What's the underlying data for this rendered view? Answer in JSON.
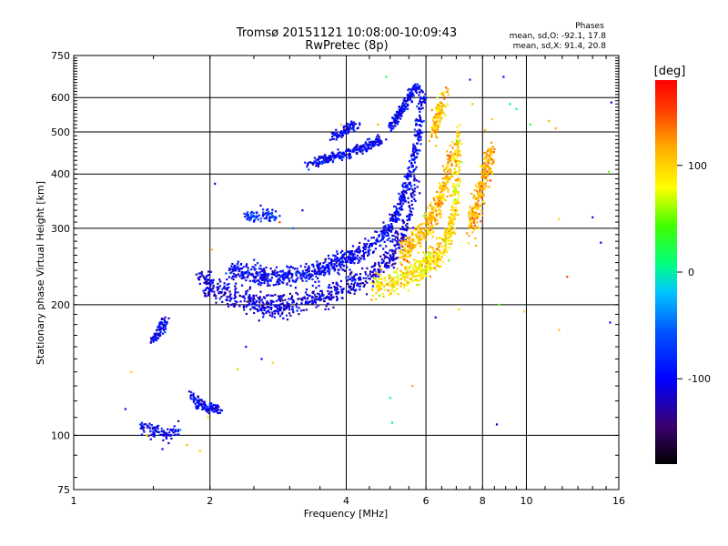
{
  "chart_data": {
    "type": "scatter",
    "title": "Tromsø 20151121 10:08:00-10:09:43",
    "subtitle": "RwPretec (8p)",
    "xlabel": "Frequency [MHz]",
    "ylabel": "Stationary phase Virtual Height [km]",
    "x_scale": "log",
    "y_scale": "log",
    "xlim": [
      1,
      16
    ],
    "ylim": [
      75,
      750
    ],
    "x_ticks": [
      1,
      2,
      4,
      6,
      8,
      10,
      16
    ],
    "x_tick_labels": [
      "1",
      "2",
      "4",
      "6",
      "8",
      "10",
      "16"
    ],
    "y_ticks": [
      75,
      100,
      200,
      300,
      400,
      500,
      600,
      750
    ],
    "y_tick_labels": [
      "75",
      "100",
      "200",
      "300",
      "400",
      "500",
      "600",
      "750"
    ],
    "grid": true,
    "phase_info": {
      "title": "Phases",
      "line_o": "mean, sd,O: -92.1, 17.8",
      "line_x": "mean, sd,X:  91.4, 20.8"
    },
    "colorbar": {
      "label": "[deg]",
      "range": [
        -180,
        180
      ],
      "ticks": [
        100,
        0,
        -100
      ],
      "tick_labels": [
        "100",
        "0",
        "-100"
      ],
      "colormap": "rainbow"
    },
    "series": [
      {
        "traces": [
          {
            "f": [
              1.9,
              2.0,
              2.2,
              2.4,
              2.6,
              2.8,
              3.0,
              3.3,
              3.6,
              4.0,
              4.4,
              4.8,
              5.1,
              5.4,
              5.7
            ],
            "h": [
              230,
              220,
              210,
              205,
              200,
              198,
              200,
              205,
              210,
              220,
              230,
              245,
              265,
              300,
              380
            ],
            "phase": -110,
            "spread": 10
          },
          {
            "f": [
              2.2,
              2.5,
              2.8,
              3.2,
              3.6,
              4.0,
              4.5,
              5.0,
              5.4,
              5.7,
              5.9
            ],
            "h": [
              240,
              235,
              232,
              235,
              245,
              255,
              270,
              300,
              360,
              450,
              620
            ],
            "phase": -100,
            "spread": 8
          },
          {
            "f": [
              3.3,
              3.6,
              4.0,
              4.4,
              4.8
            ],
            "h": [
              420,
              435,
              445,
              465,
              480
            ],
            "phase": -100,
            "spread": 4
          },
          {
            "f": [
              3.7,
              4.0,
              4.2
            ],
            "h": [
              490,
              505,
              520
            ],
            "phase": -100,
            "spread": 4
          },
          {
            "f": [
              5.0,
              5.3,
              5.5,
              5.7
            ],
            "h": [
              510,
              560,
              600,
              640
            ],
            "phase": -95,
            "spread": 3
          },
          {
            "f": [
              1.4,
              1.5,
              1.6,
              1.7
            ],
            "h": [
              105,
              102,
              100,
              104
            ],
            "phase": -105,
            "spread": 6
          },
          {
            "f": [
              1.5,
              1.55,
              1.6
            ],
            "h": [
              165,
              175,
              185
            ],
            "phase": -100,
            "spread": 3
          },
          {
            "f": [
              1.8,
              1.9,
              2.0,
              2.1
            ],
            "h": [
              125,
              118,
              115,
              115
            ],
            "phase": -100,
            "spread": 4
          },
          {
            "f": [
              2.4,
              2.6,
              2.8
            ],
            "h": [
              320,
              325,
              320
            ],
            "phase": -80,
            "spread": 6
          }
        ]
      },
      {
        "traces": [
          {
            "f": [
              4.6,
              5.0,
              5.4,
              5.8,
              6.1,
              6.4,
              6.7,
              6.9,
              7.0,
              7.1
            ],
            "h": [
              220,
              225,
              232,
              240,
              250,
              262,
              285,
              320,
              400,
              500
            ],
            "phase": 95,
            "spread": 10
          },
          {
            "f": [
              5.3,
              5.6,
              6.0,
              6.3,
              6.6,
              6.9
            ],
            "h": [
              260,
              280,
              300,
              330,
              380,
              450
            ],
            "phase": 110,
            "spread": 10
          },
          {
            "f": [
              6.2,
              6.4,
              6.6
            ],
            "h": [
              500,
              550,
              600
            ],
            "phase": 110,
            "spread": 12
          },
          {
            "f": [
              7.5,
              7.8,
              8.1,
              8.4
            ],
            "h": [
              300,
              340,
              400,
              450
            ],
            "phase": 115,
            "spread": 12
          }
        ]
      }
    ],
    "scatter_extra": [
      {
        "f": 1.3,
        "h": 115,
        "phase": -110
      },
      {
        "f": 1.34,
        "h": 140,
        "phase": 100
      },
      {
        "f": 1.45,
        "h": 100,
        "phase": 90
      },
      {
        "f": 1.57,
        "h": 93,
        "phase": -105
      },
      {
        "f": 1.62,
        "h": 96,
        "phase": -110
      },
      {
        "f": 1.72,
        "h": 103,
        "phase": -30
      },
      {
        "f": 1.78,
        "h": 95,
        "phase": 110
      },
      {
        "f": 1.9,
        "h": 92,
        "phase": 100
      },
      {
        "f": 1.98,
        "h": 110,
        "phase": 100
      },
      {
        "f": 2.05,
        "h": 380,
        "phase": -110
      },
      {
        "f": 2.02,
        "h": 268,
        "phase": 110
      },
      {
        "f": 2.3,
        "h": 142,
        "phase": 60
      },
      {
        "f": 2.4,
        "h": 160,
        "phase": -105
      },
      {
        "f": 2.6,
        "h": 150,
        "phase": -105
      },
      {
        "f": 2.75,
        "h": 147,
        "phase": 100
      },
      {
        "f": 2.85,
        "h": 310,
        "phase": 150
      },
      {
        "f": 3.05,
        "h": 300,
        "phase": -50
      },
      {
        "f": 3.2,
        "h": 330,
        "phase": -110
      },
      {
        "f": 3.9,
        "h": 520,
        "phase": 110
      },
      {
        "f": 4.7,
        "h": 520,
        "phase": 110
      },
      {
        "f": 4.9,
        "h": 670,
        "phase": 20
      },
      {
        "f": 5.0,
        "h": 122,
        "phase": 0
      },
      {
        "f": 5.05,
        "h": 107,
        "phase": -5
      },
      {
        "f": 5.6,
        "h": 130,
        "phase": 120
      },
      {
        "f": 6.3,
        "h": 187,
        "phase": -100
      },
      {
        "f": 7.1,
        "h": 195,
        "phase": 95
      },
      {
        "f": 7.5,
        "h": 660,
        "phase": -80
      },
      {
        "f": 7.6,
        "h": 580,
        "phase": 110
      },
      {
        "f": 8.4,
        "h": 535,
        "phase": 100
      },
      {
        "f": 8.4,
        "h": 460,
        "phase": 120
      },
      {
        "f": 8.6,
        "h": 106,
        "phase": -110
      },
      {
        "f": 8.7,
        "h": 200,
        "phase": 50
      },
      {
        "f": 8.9,
        "h": 670,
        "phase": -100
      },
      {
        "f": 9.5,
        "h": 565,
        "phase": 10
      },
      {
        "f": 9.9,
        "h": 193,
        "phase": 100
      },
      {
        "f": 11.2,
        "h": 530,
        "phase": 110
      },
      {
        "f": 11.6,
        "h": 510,
        "phase": 120
      },
      {
        "f": 11.8,
        "h": 175,
        "phase": 110
      },
      {
        "f": 11.8,
        "h": 315,
        "phase": 100
      },
      {
        "f": 12.3,
        "h": 232,
        "phase": 150
      },
      {
        "f": 14.0,
        "h": 318,
        "phase": -105
      },
      {
        "f": 14.6,
        "h": 278,
        "phase": -100
      },
      {
        "f": 15.3,
        "h": 182,
        "phase": -100
      },
      {
        "f": 15.2,
        "h": 405,
        "phase": 50
      },
      {
        "f": 15.4,
        "h": 585,
        "phase": -100
      },
      {
        "f": 10.2,
        "h": 520,
        "phase": 20
      },
      {
        "f": 8.1,
        "h": 505,
        "phase": 110
      },
      {
        "f": 9.2,
        "h": 580,
        "phase": 0
      }
    ]
  }
}
